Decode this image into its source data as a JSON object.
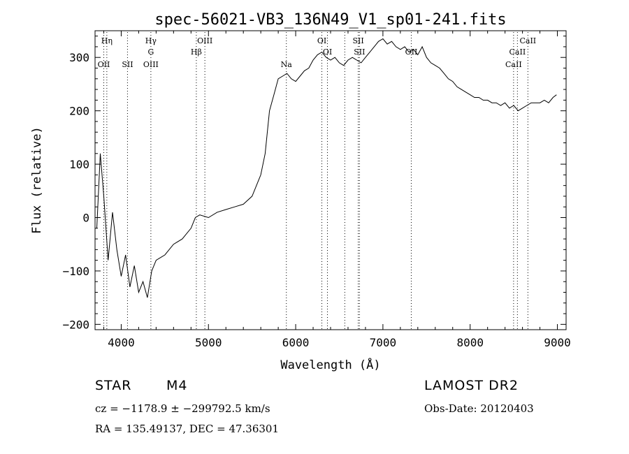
{
  "chart_data": {
    "type": "line",
    "title": "spec-56021-VB3_136N49_V1_sp01-241.fits",
    "xlabel": "Wavelength (Å)",
    "ylabel": "Flux (relative)",
    "xlim": [
      3700,
      9100
    ],
    "ylim": [
      -210,
      350
    ],
    "x_ticks": [
      4000,
      5000,
      6000,
      7000,
      8000,
      9000
    ],
    "y_ticks": [
      -200,
      -100,
      0,
      100,
      200,
      300
    ],
    "grid": false,
    "legend": "none",
    "line_color": "#000000",
    "series": [
      {
        "x": [
          3720,
          3760,
          3800,
          3850,
          3900,
          3950,
          4000,
          4050,
          4100,
          4150,
          4200,
          4250,
          4300,
          4350,
          4400,
          4450,
          4500,
          4600,
          4700,
          4800,
          4850,
          4900,
          5000,
          5100,
          5200,
          5300,
          5400,
          5500,
          5600,
          5650,
          5700,
          5750,
          5800,
          5850,
          5900,
          5950,
          6000,
          6050,
          6100,
          6150,
          6200,
          6250,
          6300,
          6350,
          6400,
          6450,
          6500,
          6550,
          6600,
          6650,
          6700,
          6750,
          6800,
          6850,
          6900,
          6950,
          7000,
          7050,
          7100,
          7150,
          7200,
          7250,
          7300,
          7350,
          7400,
          7450,
          7500,
          7550,
          7600,
          7650,
          7700,
          7750,
          7800,
          7850,
          7900,
          7950,
          8000,
          8050,
          8100,
          8150,
          8200,
          8250,
          8300,
          8350,
          8400,
          8450,
          8500,
          8550,
          8600,
          8650,
          8700,
          8750,
          8800,
          8850,
          8900,
          8950,
          8990
        ],
        "y": [
          -20,
          120,
          40,
          -80,
          10,
          -60,
          -110,
          -70,
          -130,
          -90,
          -140,
          -120,
          -150,
          -100,
          -80,
          -75,
          -70,
          -50,
          -40,
          -20,
          0,
          5,
          0,
          10,
          15,
          20,
          25,
          40,
          80,
          120,
          200,
          230,
          260,
          265,
          270,
          260,
          255,
          265,
          275,
          280,
          295,
          305,
          310,
          300,
          295,
          300,
          290,
          285,
          295,
          300,
          295,
          290,
          300,
          310,
          320,
          330,
          335,
          325,
          330,
          320,
          315,
          320,
          310,
          315,
          305,
          320,
          300,
          290,
          285,
          280,
          270,
          260,
          255,
          245,
          240,
          235,
          230,
          225,
          225,
          220,
          220,
          215,
          215,
          210,
          215,
          205,
          210,
          200,
          205,
          210,
          215,
          215,
          215,
          220,
          215,
          225,
          230
        ]
      }
    ],
    "lines": [
      {
        "x": 3835,
        "labels": [
          "H&#951;"
        ],
        "rows": [
          0
        ]
      },
      {
        "x": 3800,
        "labels": [
          "OII"
        ],
        "rows": [
          3
        ]
      },
      {
        "x": 4072,
        "labels": [
          "SII"
        ],
        "rows": [
          3
        ]
      },
      {
        "x": 4340,
        "labels": [
          "H&#947;",
          "G",
          "OIII"
        ],
        "rows": [
          0,
          1,
          3
        ]
      },
      {
        "x": 4861,
        "labels": [
          "H&#946;"
        ],
        "rows": [
          2
        ]
      },
      {
        "x": 4959,
        "labels": [
          "OIII"
        ],
        "rows": [
          0
        ]
      },
      {
        "x": 5893,
        "labels": [
          "Na"
        ],
        "rows": [
          3
        ]
      },
      {
        "x": 6300,
        "labels": [
          "OI"
        ],
        "rows": [
          0
        ]
      },
      {
        "x": 6364,
        "labels": [
          "OI"
        ],
        "rows": [
          2
        ]
      },
      {
        "x": 6563,
        "labels": [],
        "rows": []
      },
      {
        "x": 6717,
        "labels": [
          "SII"
        ],
        "rows": [
          0
        ]
      },
      {
        "x": 6731,
        "labels": [
          "SII"
        ],
        "rows": [
          2
        ]
      },
      {
        "x": 7325,
        "labels": [
          "OII"
        ],
        "rows": [
          2
        ]
      },
      {
        "x": 8498,
        "labels": [
          "CaII"
        ],
        "rows": [
          3
        ]
      },
      {
        "x": 8542,
        "labels": [
          "CaII"
        ],
        "rows": [
          2
        ]
      },
      {
        "x": 8662,
        "labels": [
          "CaII"
        ],
        "rows": [
          0
        ]
      }
    ]
  },
  "info": {
    "object_class": "STAR",
    "subclass": "M4",
    "survey": "LAMOST DR2",
    "cz_line": "cz = −1178.9 ± −299792.5 km/s",
    "obs_date_line": "Obs-Date: 20120403",
    "coords_line": "RA = 135.49137, DEC =  47.36301"
  }
}
